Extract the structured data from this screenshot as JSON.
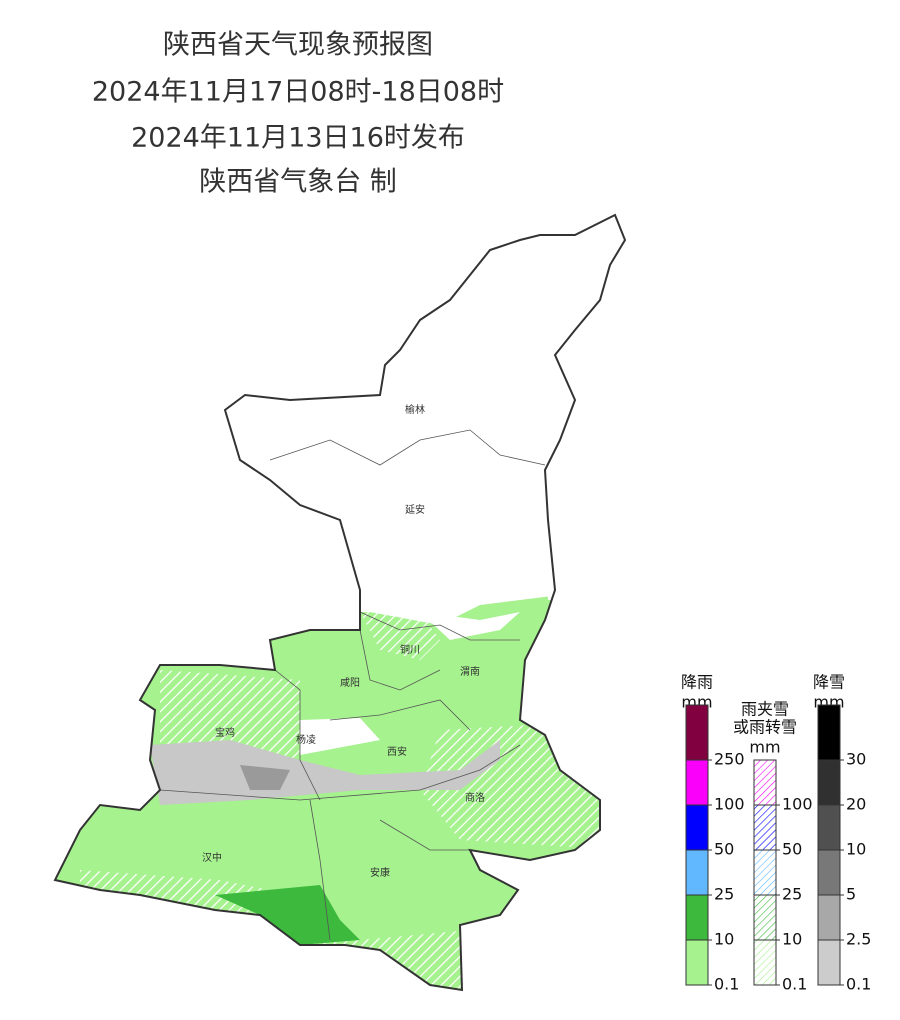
{
  "header": {
    "title": "陕西省天气现象预报图",
    "period": "2024年11月17日08时-18日08时",
    "issued": "2024年11月13日16时发布",
    "issuer": "陕西省气象台 制"
  },
  "cities": [
    "榆林",
    "延安",
    "铜川",
    "渭南",
    "咸阳",
    "宝鸡",
    "杨凌",
    "西安",
    "商洛",
    "汉中",
    "安康"
  ],
  "legends": [
    {
      "title": [
        "降雨"
      ],
      "unit": "mm",
      "ticks": [
        0.1,
        10,
        25,
        50,
        100,
        250
      ],
      "colors": [
        "#a6f28f",
        "#3dba3d",
        "#61b8ff",
        "#0000fe",
        "#fa00fa",
        "#800040"
      ],
      "hatched": false
    },
    {
      "title": [
        "雨夹雪",
        "或雨转雪"
      ],
      "unit": "mm",
      "ticks": [
        0.1,
        10,
        25,
        50,
        100
      ],
      "colors": [
        "#a6f28f",
        "#3dba3d",
        "#61b8ff",
        "#0000fe",
        "#fa00fa"
      ],
      "hatched": true
    },
    {
      "title": [
        "降雪"
      ],
      "unit": "mm",
      "ticks": [
        0.1,
        2.5,
        5,
        10,
        20,
        30
      ],
      "colors": [
        "#cccccc",
        "#a8a8a8",
        "#787878",
        "#505050",
        "#303030",
        "#000000"
      ],
      "hatched": false
    }
  ]
}
